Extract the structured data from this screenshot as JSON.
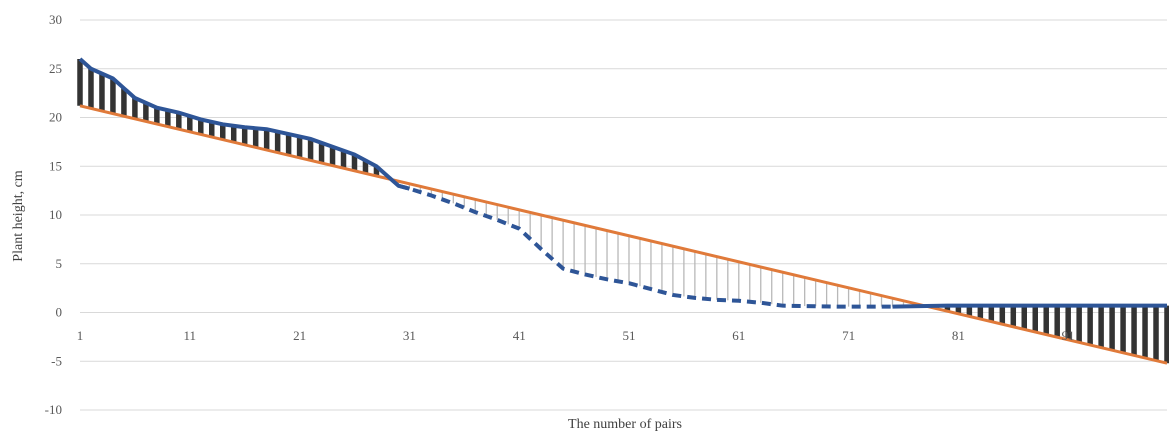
{
  "chart_data": {
    "type": "line",
    "xlabel": "The number of pairs",
    "ylabel": "Plant height, cm",
    "ylim": [
      -10,
      30
    ],
    "y_ticks": [
      "30",
      "25",
      "20",
      "15",
      "10",
      "5",
      "0",
      "-5",
      "-10"
    ],
    "x_tick_labels": [
      "1",
      "11",
      "21",
      "31",
      "41",
      "51",
      "61",
      "71",
      "81",
      "91"
    ],
    "x_range": [
      1,
      100
    ],
    "grid": "horizontal",
    "legend": "none",
    "colors": {
      "observed": "#2e5597",
      "trend": "#e07a3a",
      "deviation_above": "#333333",
      "deviation_below": "#b8b8b8",
      "grid": "#d9d9d9"
    },
    "series": [
      {
        "key": "observed",
        "style": "solid-then-dashed-then-solid",
        "points": [
          [
            1,
            26
          ],
          [
            2,
            25
          ],
          [
            4,
            24
          ],
          [
            6,
            22
          ],
          [
            8,
            21
          ],
          [
            10,
            20.5
          ],
          [
            12,
            19.8
          ],
          [
            14,
            19.3
          ],
          [
            16,
            19
          ],
          [
            18,
            18.8
          ],
          [
            20,
            18.3
          ],
          [
            22,
            17.8
          ],
          [
            24,
            17
          ],
          [
            26,
            16.2
          ],
          [
            28,
            15
          ],
          [
            30,
            13
          ],
          [
            31,
            12.7
          ],
          [
            33,
            12
          ],
          [
            35,
            11.2
          ],
          [
            37,
            10.3
          ],
          [
            39,
            9.5
          ],
          [
            41,
            8.6
          ],
          [
            43,
            6.5
          ],
          [
            45,
            4.5
          ],
          [
            47,
            3.9
          ],
          [
            49,
            3.4
          ],
          [
            51,
            3
          ],
          [
            53,
            2.4
          ],
          [
            55,
            1.8
          ],
          [
            57,
            1.5
          ],
          [
            59,
            1.3
          ],
          [
            61,
            1.2
          ],
          [
            63,
            1
          ],
          [
            65,
            0.7
          ],
          [
            70,
            0.6
          ],
          [
            75,
            0.6
          ],
          [
            80,
            0.7
          ],
          [
            85,
            0.7
          ],
          [
            90,
            0.7
          ],
          [
            95,
            0.7
          ],
          [
            100,
            0.7
          ]
        ]
      },
      {
        "key": "trend",
        "style": "straight",
        "points": [
          [
            1,
            21.2
          ],
          [
            100,
            -5.2
          ]
        ]
      }
    ]
  }
}
